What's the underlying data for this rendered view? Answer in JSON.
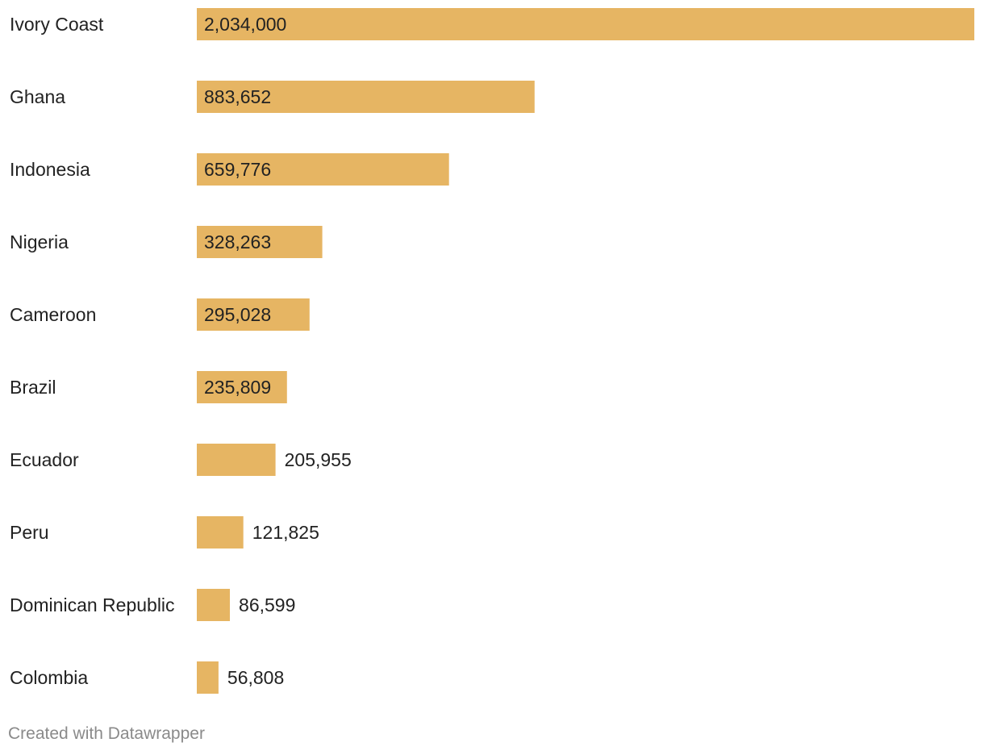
{
  "chart_data": {
    "type": "bar",
    "orientation": "horizontal",
    "categories": [
      "Ivory Coast",
      "Ghana",
      "Indonesia",
      "Nigeria",
      "Cameroon",
      "Brazil",
      "Ecuador",
      "Peru",
      "Dominican Republic",
      "Colombia"
    ],
    "values": [
      2034000,
      883652,
      659776,
      328263,
      295028,
      235809,
      205955,
      121825,
      86599,
      56808
    ],
    "value_labels": [
      "2,034,000",
      "883,652",
      "659,776",
      "328,263",
      "295,028",
      "235,809",
      "205,955",
      "121,825",
      "86,599",
      "56,808"
    ],
    "title": "",
    "xlabel": "",
    "ylabel": "",
    "xlim": [
      0,
      2034000
    ],
    "grid": false,
    "bar_color": "#e6b563"
  },
  "footer": {
    "credit": "Created with Datawrapper"
  }
}
